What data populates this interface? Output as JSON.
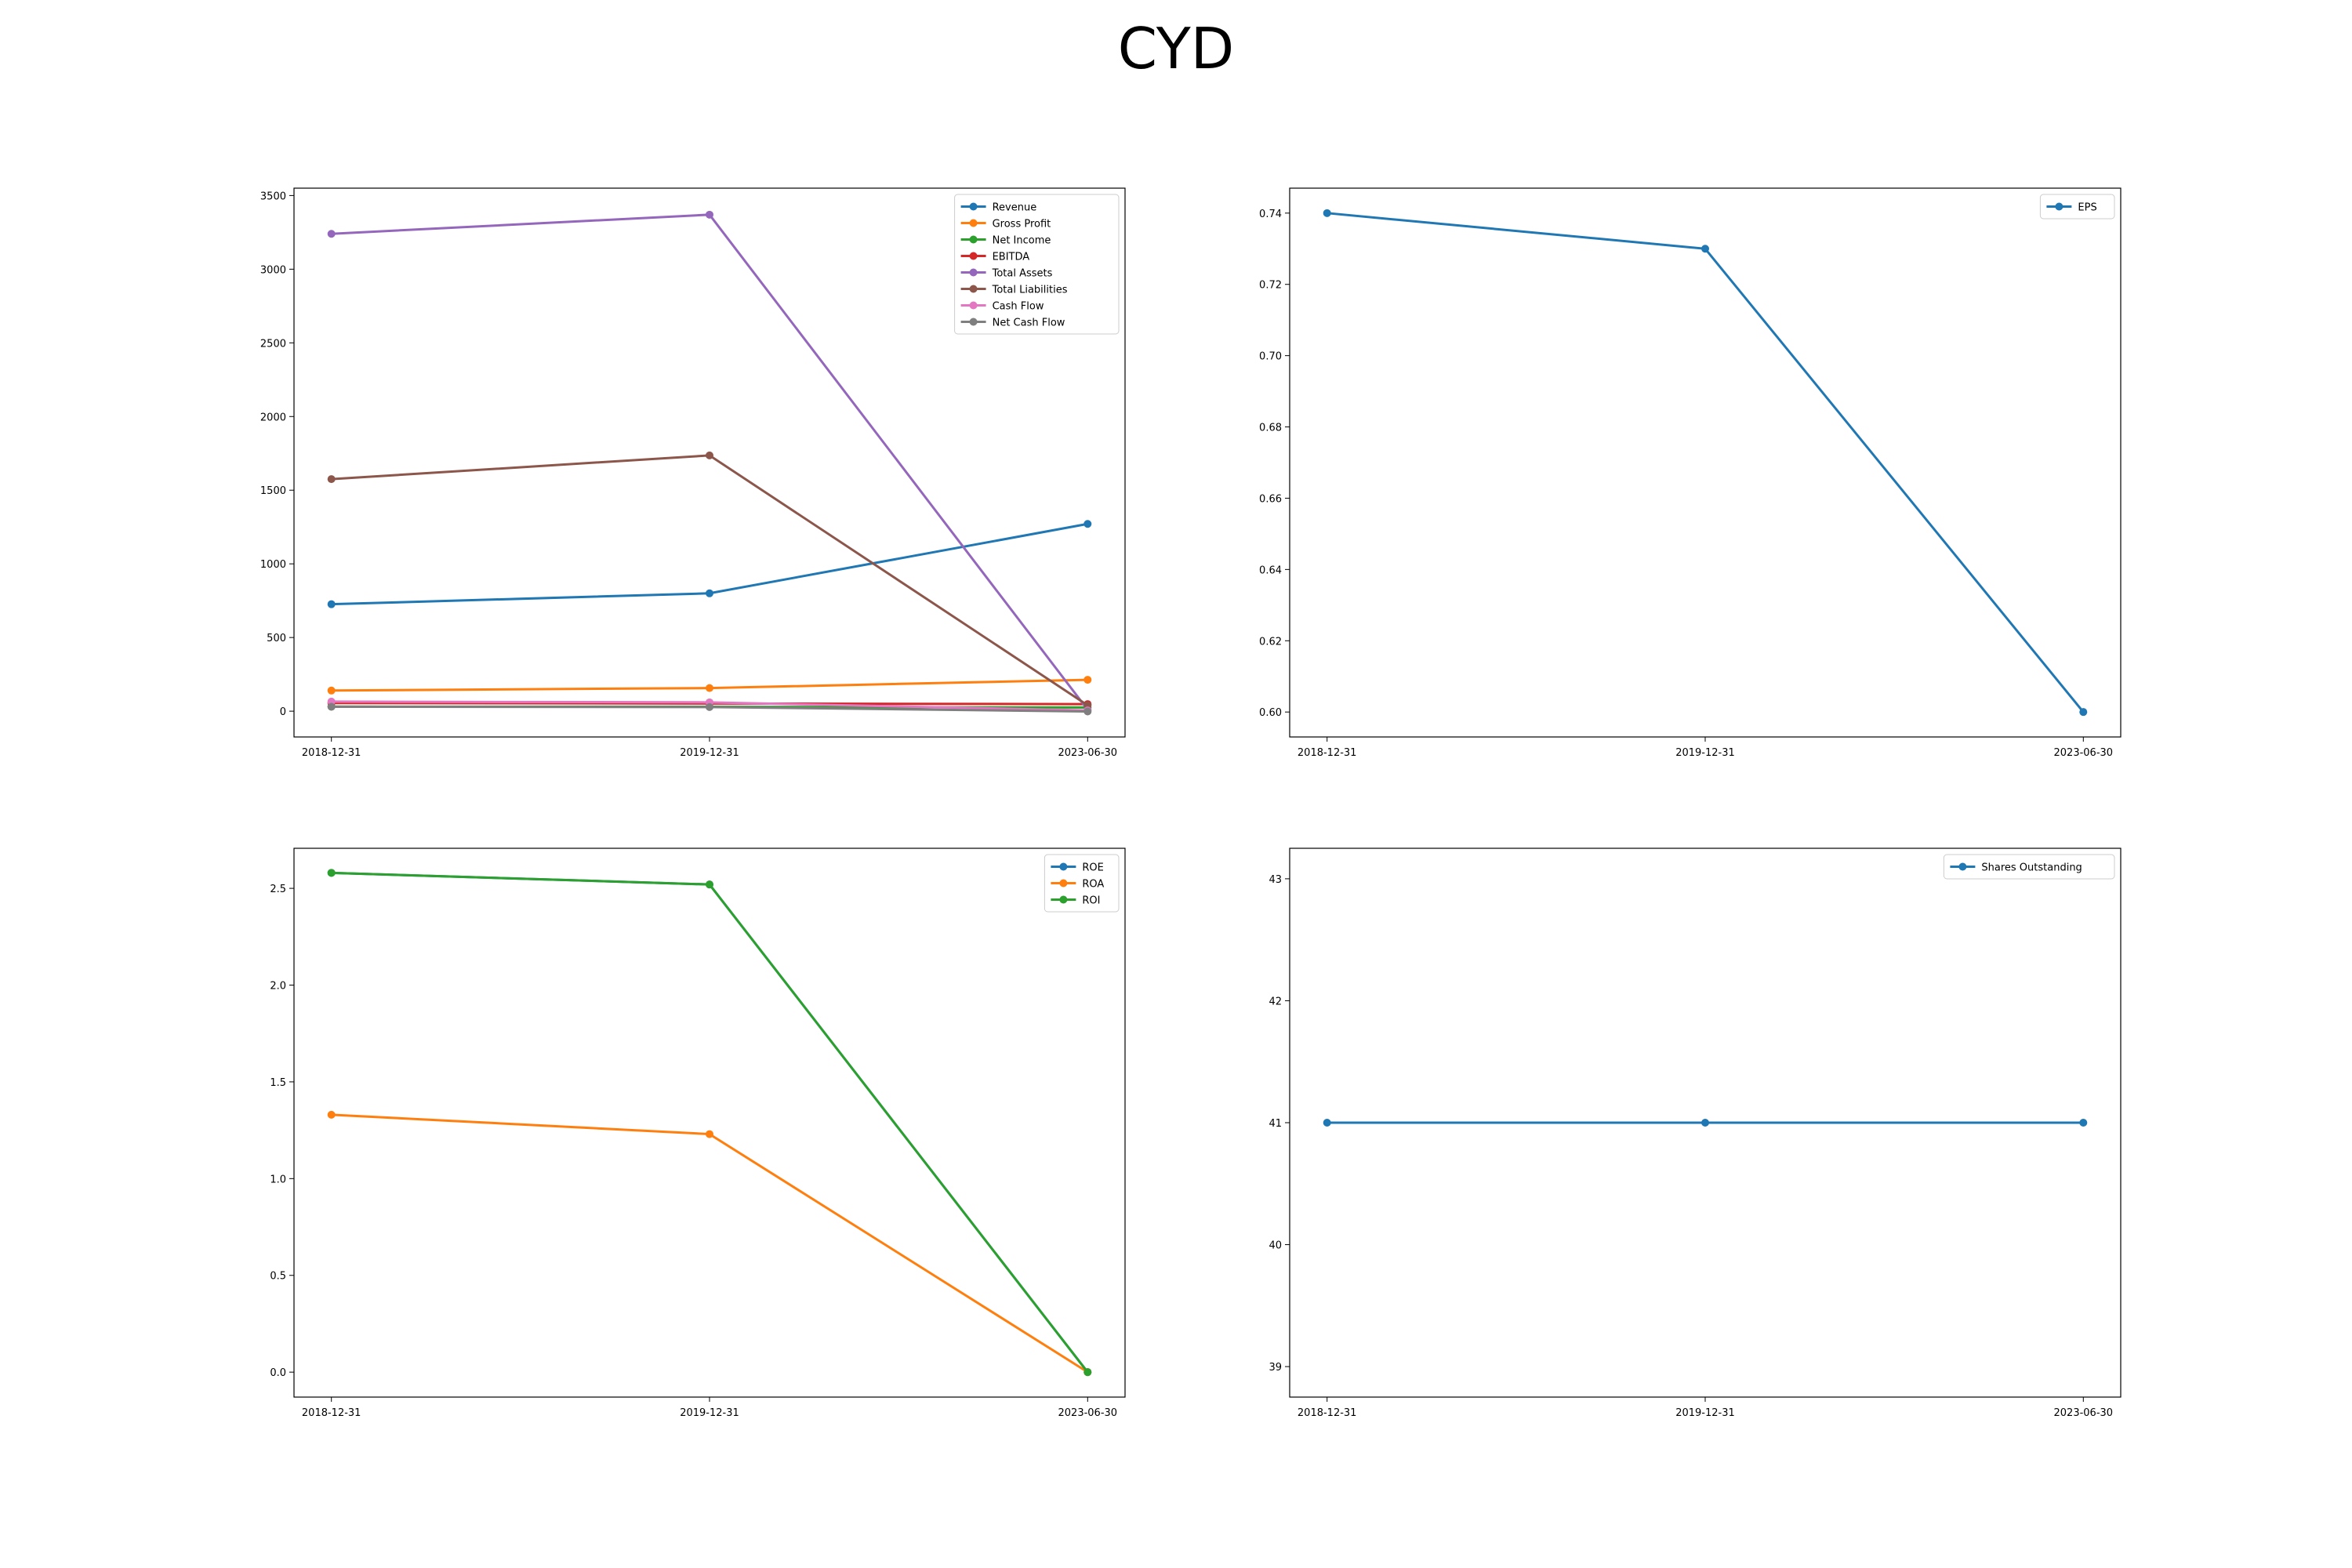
{
  "figure_title": "CYD",
  "chart_data": [
    {
      "type": "line",
      "x": [
        "2018-12-31",
        "2019-12-31",
        "2023-06-30"
      ],
      "ylim": [
        -175,
        3550
      ],
      "yticks": [
        0,
        500,
        1000,
        1500,
        2000,
        2500,
        3000,
        3500
      ],
      "legend_position": "top-right",
      "series": [
        {
          "name": "Revenue",
          "color": "#1f77b4",
          "values": [
            726,
            800,
            1271
          ]
        },
        {
          "name": "Gross Profit",
          "color": "#ff7f0e",
          "values": [
            140,
            157,
            213
          ]
        },
        {
          "name": "Net Income",
          "color": "#2ca02c",
          "values": [
            31,
            30,
            25
          ]
        },
        {
          "name": "EBITDA",
          "color": "#d62728",
          "values": [
            55,
            52,
            48
          ]
        },
        {
          "name": "Total Assets",
          "color": "#9467bd",
          "values": [
            3240,
            3370,
            10
          ]
        },
        {
          "name": "Total Liabilities",
          "color": "#8c564b",
          "values": [
            1575,
            1736,
            40
          ]
        },
        {
          "name": "Cash Flow",
          "color": "#e377c2",
          "values": [
            65,
            60,
            5
          ]
        },
        {
          "name": "Net Cash Flow",
          "color": "#7f7f7f",
          "values": [
            30,
            28,
            -2
          ]
        }
      ]
    },
    {
      "type": "line",
      "x": [
        "2018-12-31",
        "2019-12-31",
        "2023-06-30"
      ],
      "ylim": [
        0.593,
        0.747
      ],
      "yticks": [
        0.6,
        0.62,
        0.64,
        0.66,
        0.68,
        0.7,
        0.72,
        0.74
      ],
      "ytick_decimals": 2,
      "legend_position": "top-right",
      "series": [
        {
          "name": "EPS",
          "color": "#1f77b4",
          "values": [
            0.74,
            0.73,
            0.6
          ]
        }
      ]
    },
    {
      "type": "line",
      "x": [
        "2018-12-31",
        "2019-12-31",
        "2023-06-30"
      ],
      "ylim": [
        -0.129,
        2.707
      ],
      "yticks": [
        0,
        0.5,
        1.0,
        1.5,
        2.0,
        2.5
      ],
      "ytick_decimals": 1,
      "legend_position": "top-right",
      "series": [
        {
          "name": "ROE",
          "color": "#1f77b4",
          "values": [
            2.58,
            2.52,
            0.0
          ]
        },
        {
          "name": "ROA",
          "color": "#ff7f0e",
          "values": [
            1.33,
            1.23,
            0.0
          ]
        },
        {
          "name": "ROI",
          "color": "#2ca02c",
          "values": [
            2.58,
            2.52,
            0.0
          ]
        }
      ]
    },
    {
      "type": "line",
      "x": [
        "2018-12-31",
        "2019-12-31",
        "2023-06-30"
      ],
      "ylim": [
        38.75,
        43.25
      ],
      "yticks": [
        39,
        40,
        41,
        42,
        43
      ],
      "legend_position": "top-right",
      "series": [
        {
          "name": "Shares Outstanding",
          "color": "#1f77b4",
          "values": [
            41,
            41,
            41
          ]
        }
      ]
    }
  ]
}
